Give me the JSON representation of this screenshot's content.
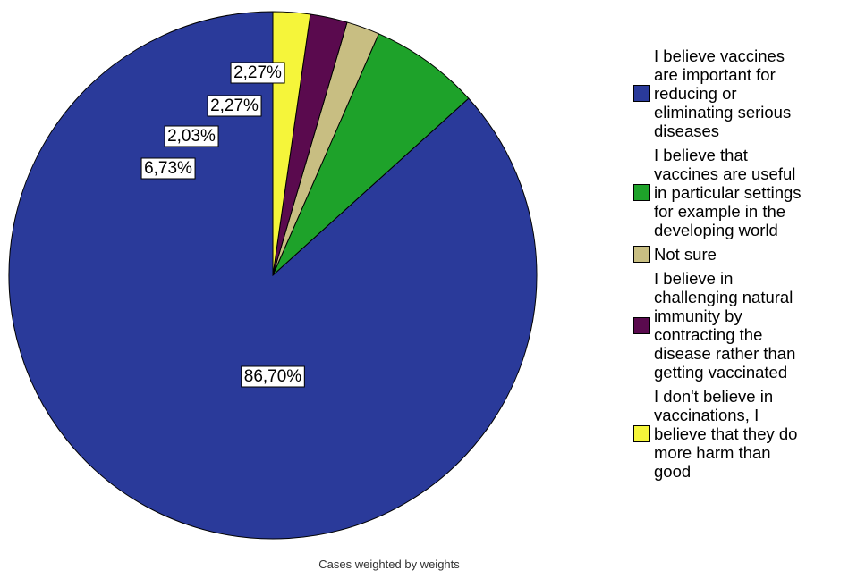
{
  "chart_data": {
    "type": "pie",
    "slices": [
      {
        "label": "I believe vaccines are important for reducing or eliminating serious diseases",
        "value": 86.7,
        "display": "86,70%",
        "color": "#2a3a9a"
      },
      {
        "label": "I believe that vaccines are useful in particular settings for example in the developing world",
        "value": 6.73,
        "display": "6,73%",
        "color": "#1ea22a"
      },
      {
        "label": "Not sure",
        "value": 2.03,
        "display": "2,03%",
        "color": "#c8be82"
      },
      {
        "label": "I believe in challenging natural immunity by contracting the disease rather than getting vaccinated",
        "value": 2.27,
        "display": "2,27%",
        "color": "#5a0a4e"
      },
      {
        "label": "I don't believe in vaccinations, I believe that they do more harm than good",
        "value": 2.27,
        "display": "2,27%",
        "color": "#f5f53a"
      }
    ],
    "legend_position": "right"
  },
  "legend": [
    {
      "lines": [
        "I believe vaccines",
        "are important for",
        "reducing or",
        "eliminating serious",
        "diseases"
      ]
    },
    {
      "lines": [
        "I believe that",
        "vaccines are useful",
        "in particular settings",
        "for example in the",
        "developing world"
      ]
    },
    {
      "lines": [
        "Not sure"
      ]
    },
    {
      "lines": [
        "I believe in",
        "challenging natural",
        "immunity by",
        "contracting the",
        "disease rather than",
        "getting vaccinated"
      ]
    },
    {
      "lines": [
        "I don't believe in",
        "vaccinations, I",
        "believe that they do",
        "more harm than",
        "good"
      ]
    }
  ],
  "footnote": "Cases weighted by weights"
}
